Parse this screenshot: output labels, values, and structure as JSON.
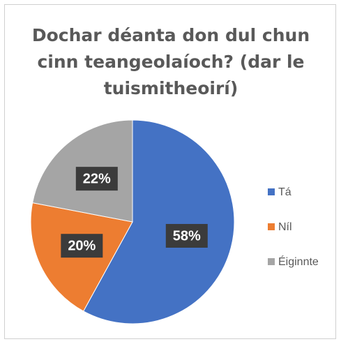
{
  "chart_data": {
    "type": "pie",
    "title": "Dochar déanta don dul chun cinn teangeolaíoch? (dar le tuismitheoirí)",
    "categories": [
      "Tá",
      "Níl",
      "Éiginnte"
    ],
    "values": [
      58,
      20,
      22
    ],
    "value_labels": [
      "58%",
      "20%",
      "22%"
    ],
    "colors": [
      "#4472c4",
      "#ed7d31",
      "#a5a5a5"
    ],
    "legend": "right"
  }
}
